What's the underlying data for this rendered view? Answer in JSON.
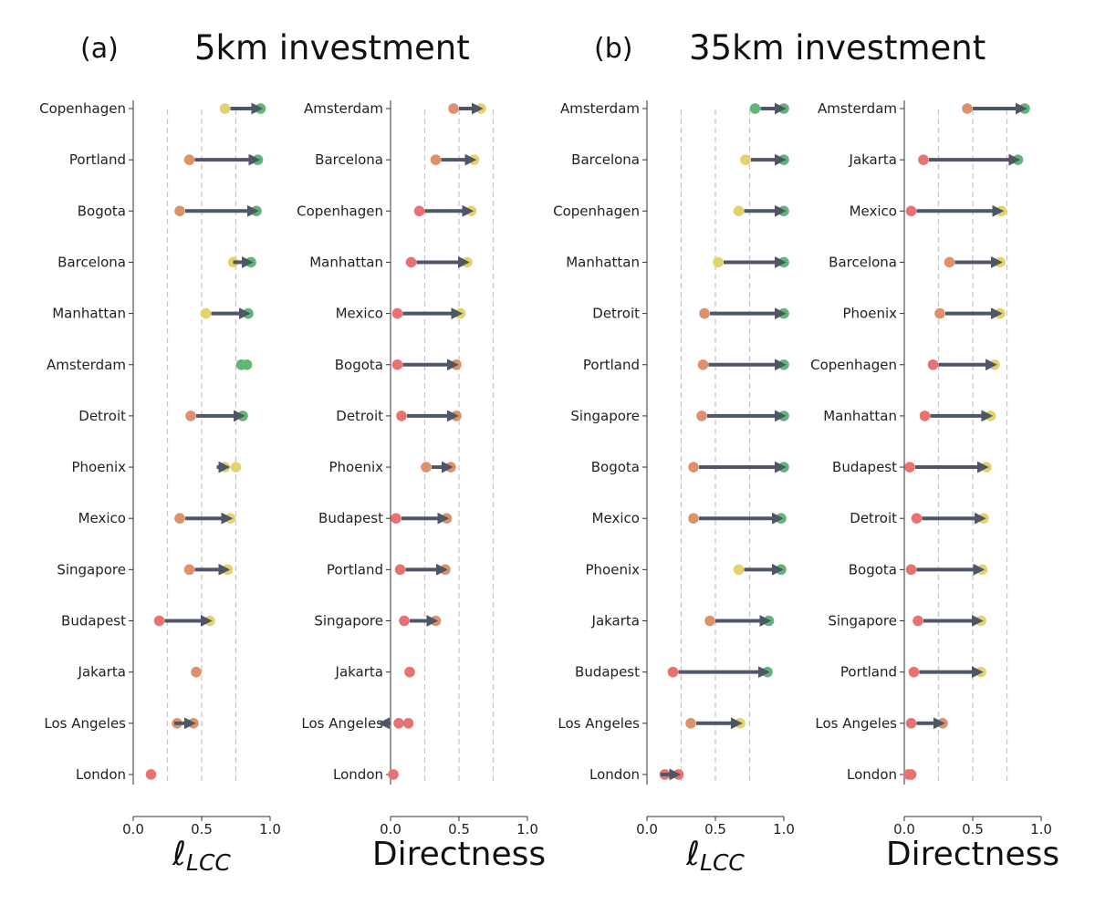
{
  "panels": [
    {
      "label": "(a)",
      "title": "5km investment"
    },
    {
      "label": "(b)",
      "title": "35km investment"
    }
  ],
  "colors": {
    "base": "#e87272",
    "mid_orange": "#dd926b",
    "mid_yellow": "#e2d36f",
    "final_green": "#62b47a",
    "arrow": "#4f5666",
    "grid": "#c8c8c8"
  },
  "chart_data": [
    {
      "type": "dot-arrow",
      "panel": "(a)",
      "xlabel": "ℓ_LCC",
      "xlim": [
        0,
        1
      ],
      "xticks": [
        "0.0",
        "0.5",
        "1.0"
      ],
      "gridlines": [
        0.25,
        0.5,
        0.75
      ],
      "rows": [
        {
          "city": "Copenhagen",
          "points": [
            {
              "x": 0.67,
              "c": "yellow"
            },
            {
              "x": 0.93,
              "c": "green"
            }
          ],
          "arrow": [
            0.71,
            0.89
          ]
        },
        {
          "city": "Portland",
          "points": [
            {
              "x": 0.41,
              "c": "orange"
            },
            {
              "x": 0.91,
              "c": "green"
            }
          ],
          "arrow": [
            0.45,
            0.87
          ]
        },
        {
          "city": "Bogota",
          "points": [
            {
              "x": 0.34,
              "c": "orange"
            },
            {
              "x": 0.9,
              "c": "green"
            }
          ],
          "arrow": [
            0.38,
            0.86
          ]
        },
        {
          "city": "Barcelona",
          "points": [
            {
              "x": 0.73,
              "c": "yellow"
            },
            {
              "x": 0.86,
              "c": "green"
            }
          ],
          "arrow": [
            0.73,
            0.82
          ]
        },
        {
          "city": "Manhattan",
          "points": [
            {
              "x": 0.53,
              "c": "yellow"
            },
            {
              "x": 0.84,
              "c": "green"
            }
          ],
          "arrow": [
            0.57,
            0.8
          ]
        },
        {
          "city": "Amsterdam",
          "points": [
            {
              "x": 0.79,
              "c": "green"
            },
            {
              "x": 0.83,
              "c": "green"
            }
          ],
          "arrow": null
        },
        {
          "city": "Detroit",
          "points": [
            {
              "x": 0.42,
              "c": "orange"
            },
            {
              "x": 0.8,
              "c": "green"
            }
          ],
          "arrow": [
            0.46,
            0.76
          ]
        },
        {
          "city": "Phoenix",
          "points": [
            {
              "x": 0.67,
              "c": "yellow"
            },
            {
              "x": 0.75,
              "c": "yellow"
            }
          ],
          "arrow": [
            0.61,
            0.65
          ]
        },
        {
          "city": "Mexico",
          "points": [
            {
              "x": 0.34,
              "c": "orange"
            },
            {
              "x": 0.71,
              "c": "yellow"
            }
          ],
          "arrow": [
            0.38,
            0.67
          ]
        },
        {
          "city": "Singapore",
          "points": [
            {
              "x": 0.41,
              "c": "orange"
            },
            {
              "x": 0.69,
              "c": "yellow"
            }
          ],
          "arrow": [
            0.45,
            0.65
          ]
        },
        {
          "city": "Budapest",
          "points": [
            {
              "x": 0.19,
              "c": "red"
            },
            {
              "x": 0.56,
              "c": "yellow"
            }
          ],
          "arrow": [
            0.23,
            0.52
          ]
        },
        {
          "city": "Jakarta",
          "points": [
            {
              "x": 0.46,
              "c": "orange"
            }
          ],
          "arrow": null
        },
        {
          "city": "Los Angeles",
          "points": [
            {
              "x": 0.32,
              "c": "orange"
            },
            {
              "x": 0.44,
              "c": "orange"
            }
          ],
          "arrow": [
            0.3,
            0.4
          ]
        },
        {
          "city": "London",
          "points": [
            {
              "x": 0.13,
              "c": "red"
            }
          ],
          "arrow": null
        }
      ]
    },
    {
      "type": "dot-arrow",
      "panel": "(a)",
      "xlabel": "Directness",
      "xlim": [
        0,
        1
      ],
      "xticks": [
        "0.0",
        "0.5",
        "1.0"
      ],
      "gridlines": [
        0.25,
        0.5,
        0.75
      ],
      "rows": [
        {
          "city": "Amsterdam",
          "points": [
            {
              "x": 0.46,
              "c": "orange"
            },
            {
              "x": 0.66,
              "c": "yellow"
            }
          ],
          "arrow": [
            0.5,
            0.62
          ]
        },
        {
          "city": "Barcelona",
          "points": [
            {
              "x": 0.33,
              "c": "orange"
            },
            {
              "x": 0.61,
              "c": "yellow"
            }
          ],
          "arrow": [
            0.37,
            0.57
          ]
        },
        {
          "city": "Copenhagen",
          "points": [
            {
              "x": 0.21,
              "c": "red"
            },
            {
              "x": 0.59,
              "c": "yellow"
            }
          ],
          "arrow": [
            0.25,
            0.55
          ]
        },
        {
          "city": "Manhattan",
          "points": [
            {
              "x": 0.15,
              "c": "red"
            },
            {
              "x": 0.56,
              "c": "yellow"
            }
          ],
          "arrow": [
            0.19,
            0.52
          ]
        },
        {
          "city": "Mexico",
          "points": [
            {
              "x": 0.05,
              "c": "red"
            },
            {
              "x": 0.51,
              "c": "yellow"
            }
          ],
          "arrow": [
            0.09,
            0.47
          ]
        },
        {
          "city": "Bogota",
          "points": [
            {
              "x": 0.05,
              "c": "red"
            },
            {
              "x": 0.48,
              "c": "orange"
            }
          ],
          "arrow": [
            0.09,
            0.44
          ]
        },
        {
          "city": "Detroit",
          "points": [
            {
              "x": 0.08,
              "c": "red"
            },
            {
              "x": 0.48,
              "c": "orange"
            }
          ],
          "arrow": [
            0.12,
            0.44
          ]
        },
        {
          "city": "Phoenix",
          "points": [
            {
              "x": 0.26,
              "c": "orange"
            },
            {
              "x": 0.44,
              "c": "orange"
            }
          ],
          "arrow": [
            0.3,
            0.4
          ]
        },
        {
          "city": "Budapest",
          "points": [
            {
              "x": 0.04,
              "c": "red"
            },
            {
              "x": 0.41,
              "c": "orange"
            }
          ],
          "arrow": [
            0.08,
            0.37
          ]
        },
        {
          "city": "Portland",
          "points": [
            {
              "x": 0.07,
              "c": "red"
            },
            {
              "x": 0.4,
              "c": "orange"
            }
          ],
          "arrow": [
            0.11,
            0.36
          ]
        },
        {
          "city": "Singapore",
          "points": [
            {
              "x": 0.1,
              "c": "red"
            },
            {
              "x": 0.33,
              "c": "orange"
            }
          ],
          "arrow": [
            0.14,
            0.29
          ]
        },
        {
          "city": "Jakarta",
          "points": [
            {
              "x": 0.14,
              "c": "red"
            }
          ],
          "arrow": null
        },
        {
          "city": "Los Angeles",
          "points": [
            {
              "x": 0.06,
              "c": "red"
            },
            {
              "x": 0.13,
              "c": "red"
            }
          ],
          "arrow": [
            0.0,
            0.02
          ]
        },
        {
          "city": "London",
          "points": [
            {
              "x": 0.02,
              "c": "red"
            }
          ],
          "arrow": null
        }
      ]
    },
    {
      "type": "dot-arrow",
      "panel": "(b)",
      "xlabel": "ℓ_LCC",
      "xlim": [
        0,
        1
      ],
      "xticks": [
        "0.0",
        "0.5",
        "1.0"
      ],
      "gridlines": [
        0.25,
        0.5,
        0.75
      ],
      "rows": [
        {
          "city": "Amsterdam",
          "points": [
            {
              "x": 0.79,
              "c": "green"
            },
            {
              "x": 1.0,
              "c": "green"
            }
          ],
          "arrow": [
            0.83,
            0.96
          ]
        },
        {
          "city": "Barcelona",
          "points": [
            {
              "x": 0.72,
              "c": "yellow"
            },
            {
              "x": 1.0,
              "c": "green"
            }
          ],
          "arrow": [
            0.76,
            0.96
          ]
        },
        {
          "city": "Copenhagen",
          "points": [
            {
              "x": 0.67,
              "c": "yellow"
            },
            {
              "x": 1.0,
              "c": "green"
            }
          ],
          "arrow": [
            0.71,
            0.96
          ]
        },
        {
          "city": "Manhattan",
          "points": [
            {
              "x": 0.52,
              "c": "yellow"
            },
            {
              "x": 1.0,
              "c": "green"
            }
          ],
          "arrow": [
            0.56,
            0.96
          ]
        },
        {
          "city": "Detroit",
          "points": [
            {
              "x": 0.42,
              "c": "orange"
            },
            {
              "x": 1.0,
              "c": "green"
            }
          ],
          "arrow": [
            0.46,
            0.96
          ]
        },
        {
          "city": "Portland",
          "points": [
            {
              "x": 0.41,
              "c": "orange"
            },
            {
              "x": 1.0,
              "c": "green"
            }
          ],
          "arrow": [
            0.45,
            0.96
          ]
        },
        {
          "city": "Singapore",
          "points": [
            {
              "x": 0.4,
              "c": "orange"
            },
            {
              "x": 1.0,
              "c": "green"
            }
          ],
          "arrow": [
            0.44,
            0.96
          ]
        },
        {
          "city": "Bogota",
          "points": [
            {
              "x": 0.34,
              "c": "orange"
            },
            {
              "x": 1.0,
              "c": "green"
            }
          ],
          "arrow": [
            0.38,
            0.96
          ]
        },
        {
          "city": "Mexico",
          "points": [
            {
              "x": 0.34,
              "c": "orange"
            },
            {
              "x": 0.98,
              "c": "green"
            }
          ],
          "arrow": [
            0.38,
            0.94
          ]
        },
        {
          "city": "Phoenix",
          "points": [
            {
              "x": 0.67,
              "c": "yellow"
            },
            {
              "x": 0.98,
              "c": "green"
            }
          ],
          "arrow": [
            0.71,
            0.94
          ]
        },
        {
          "city": "Jakarta",
          "points": [
            {
              "x": 0.46,
              "c": "orange"
            },
            {
              "x": 0.89,
              "c": "green"
            }
          ],
          "arrow": [
            0.5,
            0.85
          ]
        },
        {
          "city": "Budapest",
          "points": [
            {
              "x": 0.19,
              "c": "red"
            },
            {
              "x": 0.88,
              "c": "green"
            }
          ],
          "arrow": [
            0.23,
            0.84
          ]
        },
        {
          "city": "Los Angeles",
          "points": [
            {
              "x": 0.32,
              "c": "orange"
            },
            {
              "x": 0.68,
              "c": "yellow"
            }
          ],
          "arrow": [
            0.36,
            0.64
          ]
        },
        {
          "city": "London",
          "points": [
            {
              "x": 0.13,
              "c": "red"
            },
            {
              "x": 0.23,
              "c": "red"
            }
          ],
          "arrow": [
            0.1,
            0.19
          ]
        }
      ]
    },
    {
      "type": "dot-arrow",
      "panel": "(b)",
      "xlabel": "Directness",
      "xlim": [
        0,
        1
      ],
      "xticks": [
        "0.0",
        "0.5",
        "1.0"
      ],
      "gridlines": [
        0.25,
        0.5,
        0.75
      ],
      "rows": [
        {
          "city": "Amsterdam",
          "points": [
            {
              "x": 0.46,
              "c": "orange"
            },
            {
              "x": 0.88,
              "c": "green"
            }
          ],
          "arrow": [
            0.5,
            0.84
          ]
        },
        {
          "city": "Jakarta",
          "points": [
            {
              "x": 0.14,
              "c": "red"
            },
            {
              "x": 0.83,
              "c": "green"
            }
          ],
          "arrow": [
            0.18,
            0.79
          ]
        },
        {
          "city": "Mexico",
          "points": [
            {
              "x": 0.05,
              "c": "red"
            },
            {
              "x": 0.71,
              "c": "yellow"
            }
          ],
          "arrow": [
            0.09,
            0.67
          ]
        },
        {
          "city": "Barcelona",
          "points": [
            {
              "x": 0.33,
              "c": "orange"
            },
            {
              "x": 0.7,
              "c": "yellow"
            }
          ],
          "arrow": [
            0.37,
            0.66
          ]
        },
        {
          "city": "Phoenix",
          "points": [
            {
              "x": 0.26,
              "c": "orange"
            },
            {
              "x": 0.7,
              "c": "yellow"
            }
          ],
          "arrow": [
            0.3,
            0.66
          ]
        },
        {
          "city": "Copenhagen",
          "points": [
            {
              "x": 0.21,
              "c": "red"
            },
            {
              "x": 0.66,
              "c": "yellow"
            }
          ],
          "arrow": [
            0.25,
            0.62
          ]
        },
        {
          "city": "Manhattan",
          "points": [
            {
              "x": 0.15,
              "c": "red"
            },
            {
              "x": 0.63,
              "c": "yellow"
            }
          ],
          "arrow": [
            0.19,
            0.59
          ]
        },
        {
          "city": "Budapest",
          "points": [
            {
              "x": 0.04,
              "c": "red"
            },
            {
              "x": 0.6,
              "c": "yellow"
            }
          ],
          "arrow": [
            0.08,
            0.56
          ]
        },
        {
          "city": "Detroit",
          "points": [
            {
              "x": 0.09,
              "c": "red"
            },
            {
              "x": 0.58,
              "c": "yellow"
            }
          ],
          "arrow": [
            0.13,
            0.54
          ]
        },
        {
          "city": "Bogota",
          "points": [
            {
              "x": 0.05,
              "c": "red"
            },
            {
              "x": 0.57,
              "c": "yellow"
            }
          ],
          "arrow": [
            0.09,
            0.53
          ]
        },
        {
          "city": "Singapore",
          "points": [
            {
              "x": 0.1,
              "c": "red"
            },
            {
              "x": 0.56,
              "c": "yellow"
            }
          ],
          "arrow": [
            0.14,
            0.52
          ]
        },
        {
          "city": "Portland",
          "points": [
            {
              "x": 0.07,
              "c": "red"
            },
            {
              "x": 0.56,
              "c": "yellow"
            }
          ],
          "arrow": [
            0.11,
            0.52
          ]
        },
        {
          "city": "Los Angeles",
          "points": [
            {
              "x": 0.05,
              "c": "red"
            },
            {
              "x": 0.28,
              "c": "orange"
            }
          ],
          "arrow": [
            0.09,
            0.24
          ]
        },
        {
          "city": "London",
          "points": [
            {
              "x": 0.03,
              "c": "red"
            },
            {
              "x": 0.05,
              "c": "red"
            }
          ],
          "arrow": null
        }
      ]
    }
  ]
}
